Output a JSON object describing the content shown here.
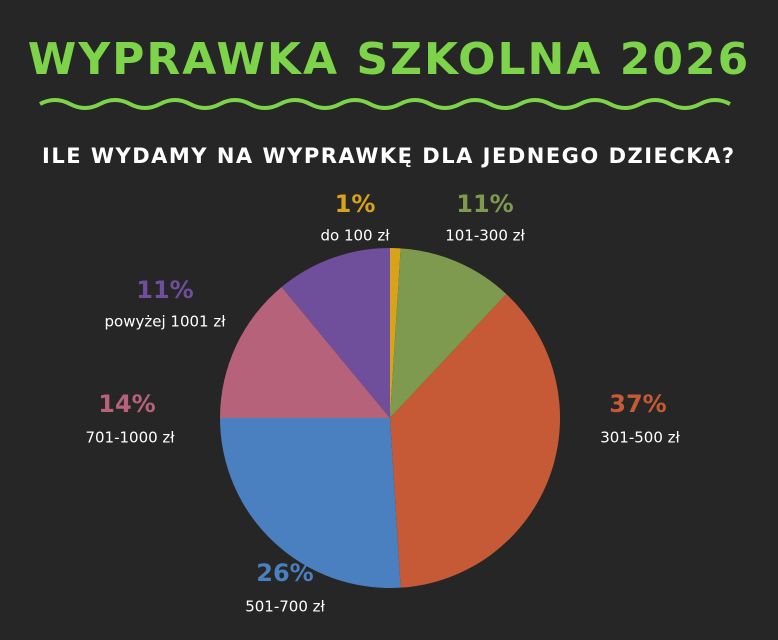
{
  "chart_data": {
    "type": "pie",
    "title": "WYPRAWKA SZKOLNA 2026",
    "subtitle": "ILE WYDAMY NA WYPRAWKĘ DLA JEDNEGO DZIECKA?",
    "categories": [
      "do 100 zł",
      "101-300 zł",
      "301-500 zł",
      "501-700 zł",
      "701-1000 zł",
      "powyżej 1001 zł"
    ],
    "values": [
      1,
      11,
      37,
      26,
      14,
      11
    ],
    "value_labels": [
      "1%",
      "11%",
      "37%",
      "26%",
      "14%",
      "11%"
    ],
    "colors": [
      "#d9a21b",
      "#7e9a4e",
      "#c65a36",
      "#4a7fc0",
      "#b5627a",
      "#6f4f9b"
    ]
  }
}
